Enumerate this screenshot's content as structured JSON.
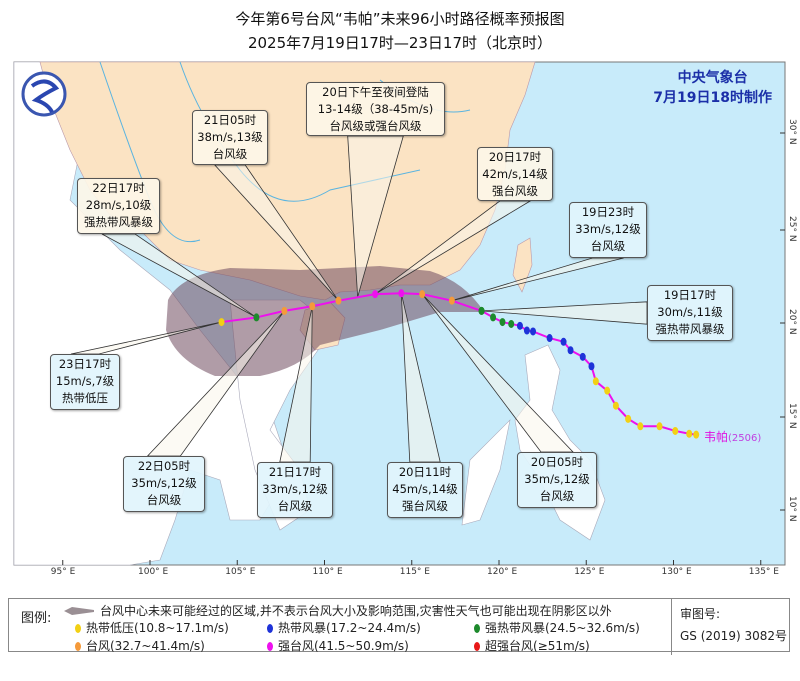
{
  "title": {
    "line1": "今年第6号台风“韦帕”未来96小时路径概率预报图",
    "line2": "2025年7月19日17时—23日17时（北京时）"
  },
  "agency": {
    "name": "中央气象台",
    "issued": "7月19日18时制作"
  },
  "storm": {
    "name": "韦帕",
    "code": "(2506)"
  },
  "axes": {
    "lon_ticks": [
      "95° E",
      "100° E",
      "105° E",
      "110° E",
      "115° E",
      "120° E",
      "125° E",
      "130° E",
      "135° E"
    ],
    "lat_ticks": [
      "30° N",
      "25° N",
      "20° N",
      "15° N",
      "10° N"
    ]
  },
  "colors": {
    "sea": "#c8ebfa",
    "china_land": "#fbe3c3",
    "other_land": "#ffffff",
    "track": "#ee10ee",
    "cone": "#7a5264",
    "td": "#f2d015",
    "ts": "#1f33d8",
    "sts": "#1d8a2c",
    "ty": "#f59a3a",
    "sty": "#ee10ee",
    "supty": "#e81818"
  },
  "forecast_points": [
    {
      "time": "19日17时",
      "wind": "30m/s,11级",
      "level": "强热带风暴级",
      "cat": "sts",
      "lon": 119.0,
      "lat": 20.65
    },
    {
      "time": "19日23时",
      "wind": "33m/s,12级",
      "level": "台风级",
      "cat": "ty",
      "lon": 117.3,
      "lat": 21.2
    },
    {
      "time": "20日05时",
      "wind": "35m/s,12级",
      "level": "台风级",
      "cat": "ty",
      "lon": 115.6,
      "lat": 21.55
    },
    {
      "time": "20日11时",
      "wind": "45m/s,14级",
      "level": "强台风级",
      "cat": "sty",
      "lon": 114.4,
      "lat": 21.6
    },
    {
      "time": "20日17时",
      "wind": "42m/s,14级",
      "level": "强台风级",
      "cat": "sty",
      "lon": 112.9,
      "lat": 21.55
    },
    {
      "time": "21日05时",
      "wind": "38m/s,13级",
      "level": "台风级",
      "cat": "ty",
      "lon": 110.8,
      "lat": 21.2
    },
    {
      "time": "21日17时",
      "wind": "33m/s,12级",
      "level": "台风级",
      "cat": "ty",
      "lon": 109.3,
      "lat": 20.9
    },
    {
      "time": "22日05时",
      "wind": "35m/s,12级",
      "level": "台风级",
      "cat": "ty",
      "lon": 107.7,
      "lat": 20.65
    },
    {
      "time": "22日17时",
      "wind": "28m/s,10级",
      "level": "强热带风暴级",
      "cat": "sts",
      "lon": 106.1,
      "lat": 20.3
    },
    {
      "time": "23日17时",
      "wind": "15m/s,7级",
      "level": "热带低压",
      "cat": "td",
      "lon": 104.1,
      "lat": 20.05
    }
  ],
  "landfall": {
    "line1": "20日下午至夜间登陆",
    "line2": "13-14级（38-45m/s)",
    "line3": "台风级或强台风级",
    "lon": 111.9,
    "lat": 21.4
  },
  "past_track": [
    {
      "lon": 131.3,
      "lat": 14.05,
      "cat": "td"
    },
    {
      "lon": 130.9,
      "lat": 14.1,
      "cat": "td"
    },
    {
      "lon": 130.1,
      "lat": 14.25,
      "cat": "td"
    },
    {
      "lon": 129.2,
      "lat": 14.5,
      "cat": "td"
    },
    {
      "lon": 128.1,
      "lat": 14.5,
      "cat": "td"
    },
    {
      "lon": 127.4,
      "lat": 14.9,
      "cat": "td"
    },
    {
      "lon": 126.7,
      "lat": 15.6,
      "cat": "td"
    },
    {
      "lon": 126.2,
      "lat": 16.4,
      "cat": "td"
    },
    {
      "lon": 125.55,
      "lat": 16.9,
      "cat": "td"
    },
    {
      "lon": 125.3,
      "lat": 17.7,
      "cat": "ts"
    },
    {
      "lon": 124.8,
      "lat": 18.2,
      "cat": "ts"
    },
    {
      "lon": 124.1,
      "lat": 18.55,
      "cat": "ts"
    },
    {
      "lon": 123.7,
      "lat": 19.0,
      "cat": "ts"
    },
    {
      "lon": 122.9,
      "lat": 19.2,
      "cat": "ts"
    },
    {
      "lon": 121.95,
      "lat": 19.55,
      "cat": "ts"
    },
    {
      "lon": 121.6,
      "lat": 19.6,
      "cat": "ts"
    },
    {
      "lon": 121.2,
      "lat": 19.85,
      "cat": "ts"
    },
    {
      "lon": 120.7,
      "lat": 19.95,
      "cat": "sts"
    },
    {
      "lon": 120.2,
      "lat": 20.05,
      "cat": "sts"
    },
    {
      "lon": 119.66,
      "lat": 20.3,
      "cat": "sts"
    },
    {
      "lon": 119.0,
      "lat": 20.65,
      "cat": "sts"
    }
  ],
  "legend": {
    "heading": "图例:",
    "cone": "台风中心未来可能经过的区域,并不表示台风大小及影响范围,灾害性天气也可能出现在阴影区以外",
    "items": [
      {
        "label": "热带低压(10.8~17.1m/s)",
        "cat": "td"
      },
      {
        "label": "热带风暴(17.2~24.4m/s)",
        "cat": "ts"
      },
      {
        "label": "强热带风暴(24.5~32.6m/s)",
        "cat": "sts"
      },
      {
        "label": "台风(32.7~41.4m/s)",
        "cat": "ty"
      },
      {
        "label": "强台风(41.5~50.9m/s)",
        "cat": "sty"
      },
      {
        "label": "超强台风(≥51m/s)",
        "cat": "supty"
      }
    ],
    "review_label": "审图号:",
    "review_no": "GS (2019) 3082号"
  }
}
